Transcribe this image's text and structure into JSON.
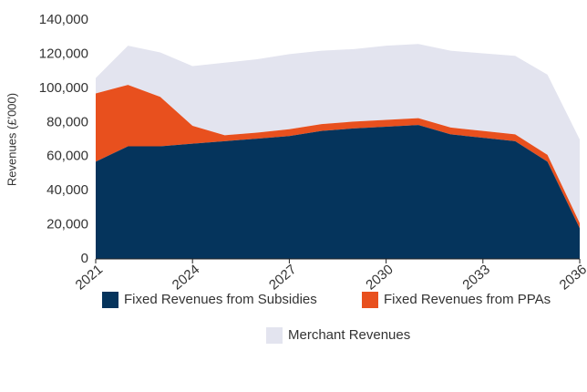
{
  "chart_data": {
    "type": "stacked_area",
    "y_label": "Revenues (£'000)",
    "x": [
      2021,
      2022,
      2023,
      2024,
      2025,
      2026,
      2027,
      2028,
      2029,
      2030,
      2031,
      2032,
      2033,
      2034,
      2035,
      2036
    ],
    "xlim": [
      2021,
      2036
    ],
    "xticks": [
      2021,
      2024,
      2027,
      2030,
      2033,
      2036
    ],
    "ylim": [
      0,
      140000
    ],
    "yticks": [
      {
        "value": 0,
        "label": "0"
      },
      {
        "value": 20000,
        "label": "20,000"
      },
      {
        "value": 40000,
        "label": "40,000"
      },
      {
        "value": 60000,
        "label": "60,000"
      },
      {
        "value": 80000,
        "label": "80,000"
      },
      {
        "value": 100000,
        "label": "100,000"
      },
      {
        "value": 120000,
        "label": "120,000"
      },
      {
        "value": 140000,
        "label": "140,000"
      }
    ],
    "grid": false,
    "legend": "bottom",
    "series": [
      {
        "name": "Fixed Revenues from Subsidies",
        "color": "#05345c",
        "values": [
          57000,
          66000,
          66000,
          67500,
          69000,
          70500,
          72000,
          75000,
          76500,
          77500,
          78500,
          73000,
          71000,
          69000,
          57000,
          18000
        ]
      },
      {
        "name": "Fixed Revenues from PPAs",
        "color": "#e8501e",
        "values": [
          40000,
          36000,
          29000,
          10500,
          3500,
          3500,
          4000,
          4000,
          4000,
          4000,
          4000,
          4000,
          4000,
          4000,
          4000,
          3000
        ]
      },
      {
        "name": "Merchant Revenues",
        "color": "#e3e4ef",
        "values": [
          9000,
          23000,
          26000,
          35000,
          42500,
          43000,
          44000,
          43000,
          42500,
          43500,
          43500,
          45000,
          45500,
          46000,
          47000,
          49000
        ]
      }
    ]
  }
}
